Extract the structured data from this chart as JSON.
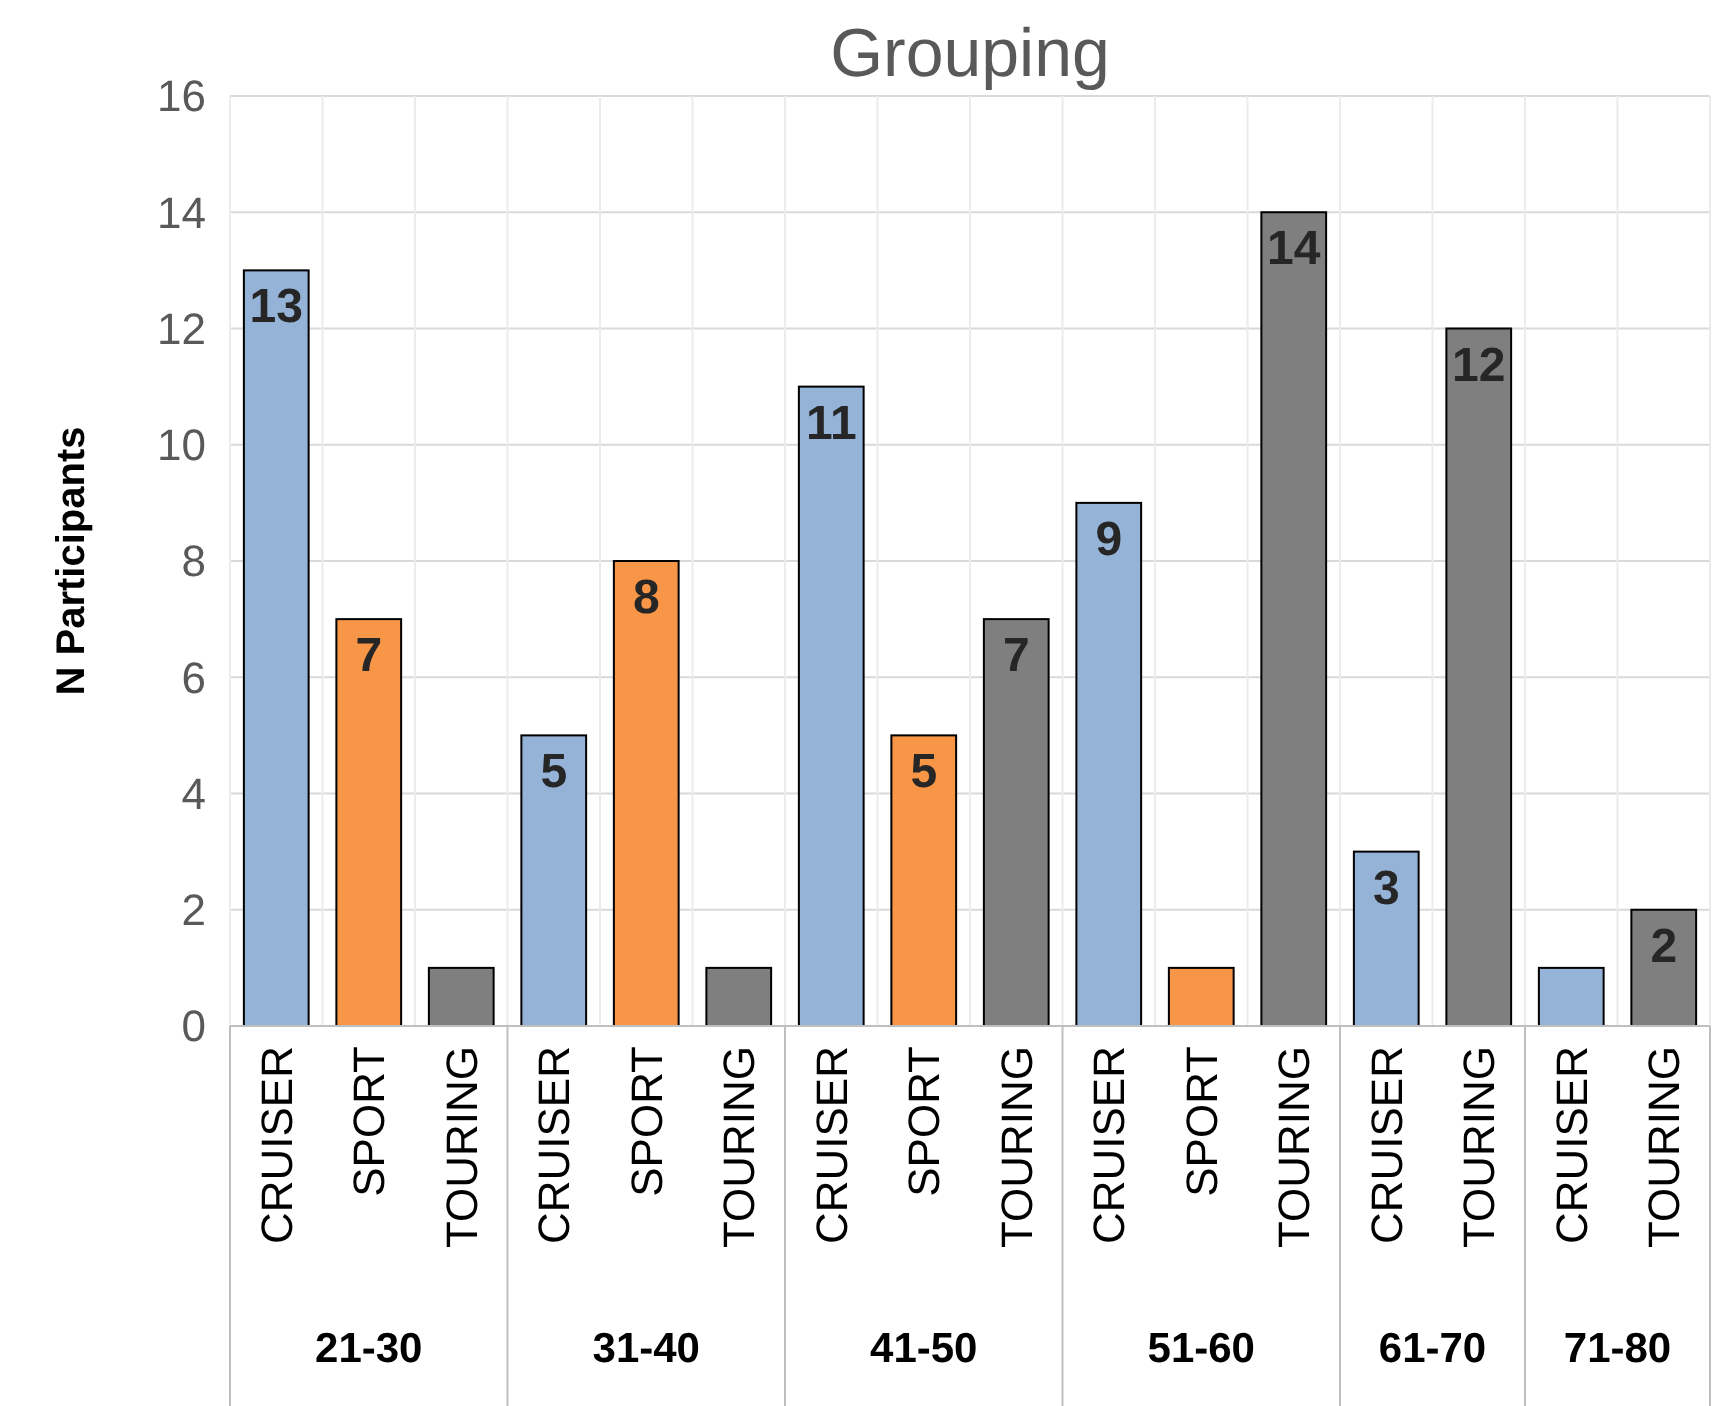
{
  "chart_data": {
    "type": "bar",
    "title": "Grouping",
    "ylabel": "N Participants",
    "categories": [
      "CRUISER",
      "SPORT",
      "TOURING",
      "CRUISER",
      "SPORT",
      "TOURING",
      "CRUISER",
      "SPORT",
      "TOURING",
      "CRUISER",
      "SPORT",
      "TOURING",
      "CRUISER",
      "TOURING",
      "CRUISER",
      "TOURING"
    ],
    "values": [
      13,
      7,
      1,
      5,
      8,
      1,
      11,
      5,
      7,
      9,
      1,
      14,
      3,
      12,
      1,
      2
    ],
    "colors": [
      "#95b3d7",
      "#f79646",
      "#7f7f7f",
      "#95b3d7",
      "#f79646",
      "#7f7f7f",
      "#95b3d7",
      "#f79646",
      "#7f7f7f",
      "#95b3d7",
      "#f79646",
      "#7f7f7f",
      "#95b3d7",
      "#7f7f7f",
      "#95b3d7",
      "#7f7f7f"
    ],
    "value_labels": [
      "13",
      "7",
      null,
      "5",
      "8",
      null,
      "11",
      "5",
      "7",
      "9",
      null,
      "14",
      "3",
      "12",
      null,
      "2"
    ],
    "annotations": [
      "21-30",
      "31-40",
      "41-50",
      "51-60",
      "61-70",
      "71-80"
    ],
    "ylim": [
      0,
      16
    ],
    "yticks": [
      0,
      2,
      4,
      6,
      8,
      10,
      12,
      14,
      16
    ],
    "grid": true
  }
}
